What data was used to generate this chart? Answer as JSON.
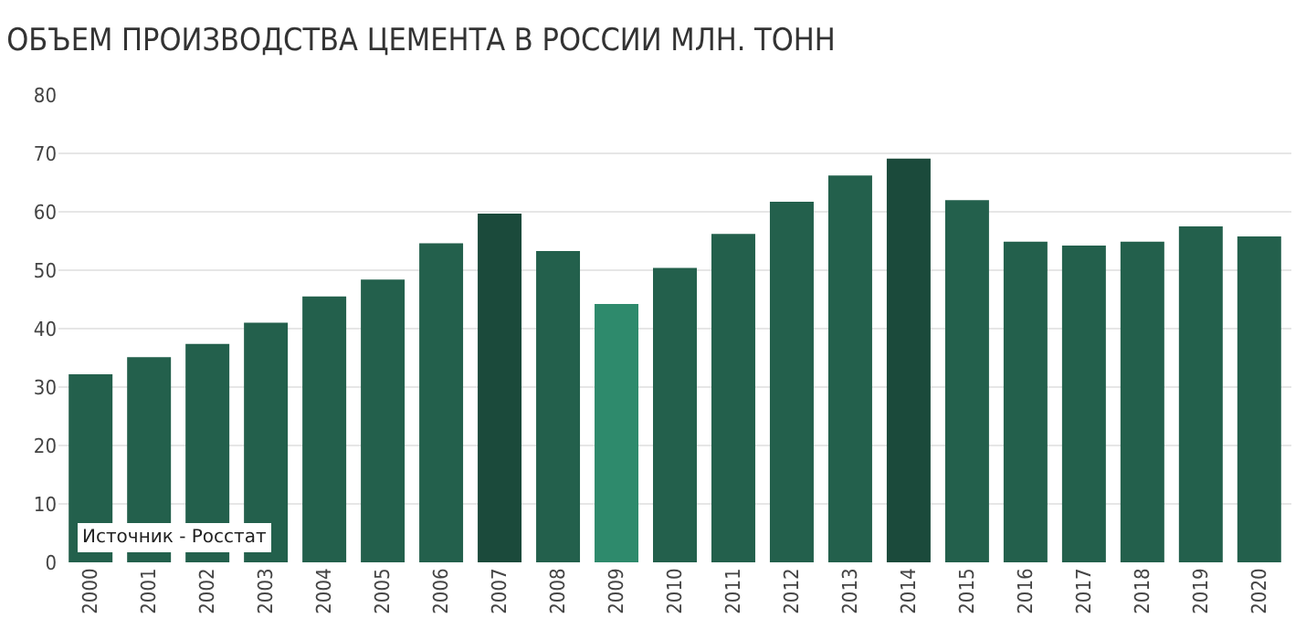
{
  "chart_data": {
    "type": "bar",
    "title": "ОБЪЕМ ПРОИЗВОДСТВА ЦЕМЕНТА В РОССИИ МЛН. ТОНН",
    "categories": [
      "2000",
      "2001",
      "2002",
      "2003",
      "2004",
      "2005",
      "2006",
      "2007",
      "2008",
      "2009",
      "2010",
      "2011",
      "2012",
      "2013",
      "2014",
      "2015",
      "2016",
      "2017",
      "2018",
      "2019",
      "2020"
    ],
    "values": [
      32.2,
      35.1,
      37.4,
      41.0,
      45.5,
      48.4,
      54.6,
      59.7,
      53.3,
      44.2,
      50.4,
      56.2,
      61.7,
      66.2,
      69.1,
      62.0,
      54.9,
      54.2,
      54.9,
      57.5,
      55.8
    ],
    "colors": [
      "#23604c",
      "#23604c",
      "#23604c",
      "#23604c",
      "#23604c",
      "#23604c",
      "#23604c",
      "#1b4a3b",
      "#23604c",
      "#2e8a6c",
      "#23604c",
      "#23604c",
      "#23604c",
      "#23604c",
      "#1b4a3b",
      "#23604c",
      "#23604c",
      "#23604c",
      "#23604c",
      "#23604c",
      "#23604c"
    ],
    "ylim": [
      0,
      80
    ],
    "yticks": [
      0,
      10,
      20,
      30,
      40,
      50,
      60,
      70,
      80
    ],
    "grid": "y",
    "annotations": [
      "Источник - Росстат"
    ]
  }
}
